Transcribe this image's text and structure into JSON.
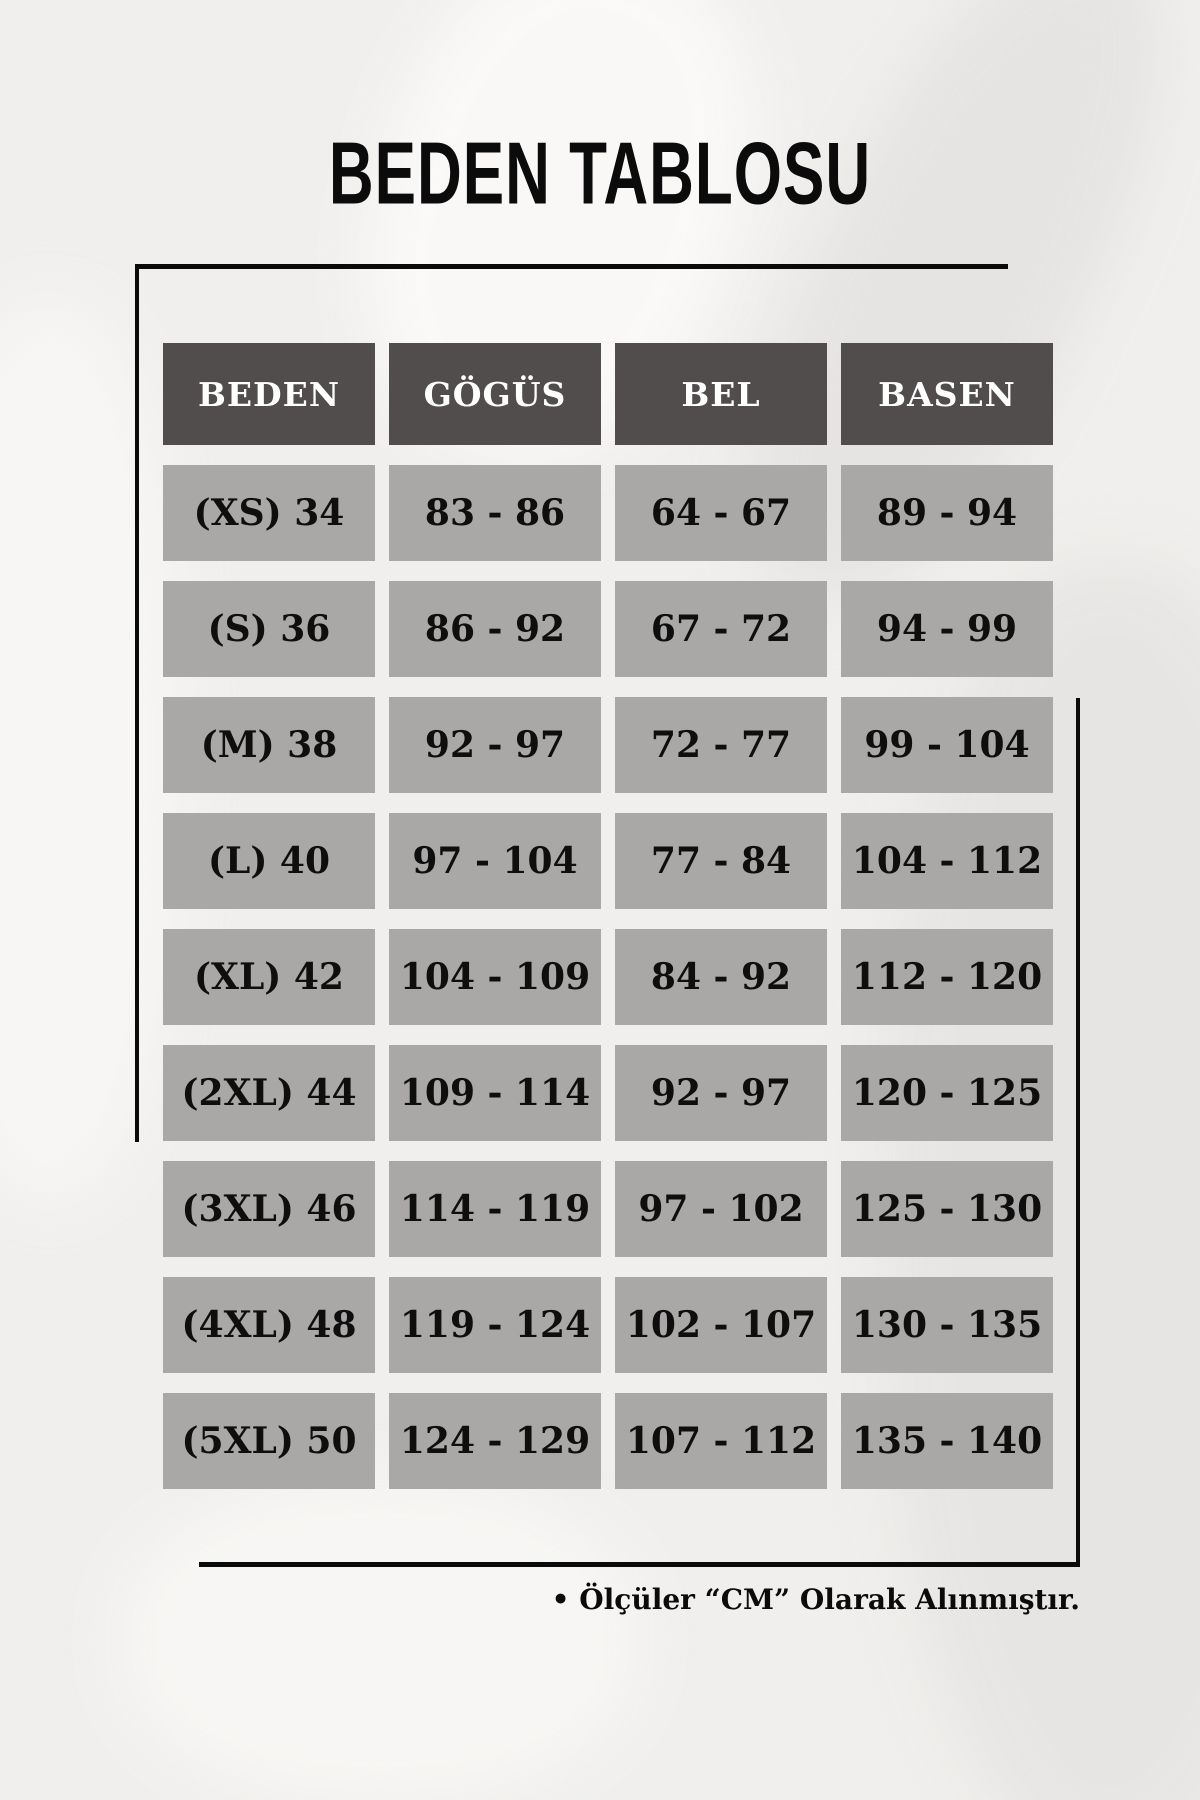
{
  "title": "BEDEN TABLOSU",
  "table": {
    "columns": [
      "BEDEN",
      "GÖGÜS",
      "BEL",
      "BASEN"
    ],
    "rows": [
      [
        "(XS) 34",
        "83 - 86",
        "64 - 67",
        "89 - 94"
      ],
      [
        "(S) 36",
        "86 - 92",
        "67 - 72",
        "94 - 99"
      ],
      [
        "(M) 38",
        "92 - 97",
        "72 - 77",
        "99 - 104"
      ],
      [
        "(L) 40",
        "97 - 104",
        "77 - 84",
        "104 - 112"
      ],
      [
        "(XL) 42",
        "104 - 109",
        "84 - 92",
        "112 - 120"
      ],
      [
        "(2XL) 44",
        "109 - 114",
        "92 - 97",
        "120 - 125"
      ],
      [
        "(3XL) 46",
        "114 - 119",
        "97 - 102",
        "125 - 130"
      ],
      [
        "(4XL) 48",
        "119 - 124",
        "102 - 107",
        "130 - 135"
      ],
      [
        "(5XL) 50",
        "124 - 129",
        "107 - 112",
        "135 - 140"
      ]
    ]
  },
  "footnote": "• Ölçüler “CM” Olarak Alınmıştır.",
  "colors": {
    "page_bg": "#f0efed",
    "header_bg": "#504d4c",
    "cell_bg": "#a9a8a6",
    "text_color": "#0f0e0e",
    "line_color": "#0a0a0a"
  }
}
